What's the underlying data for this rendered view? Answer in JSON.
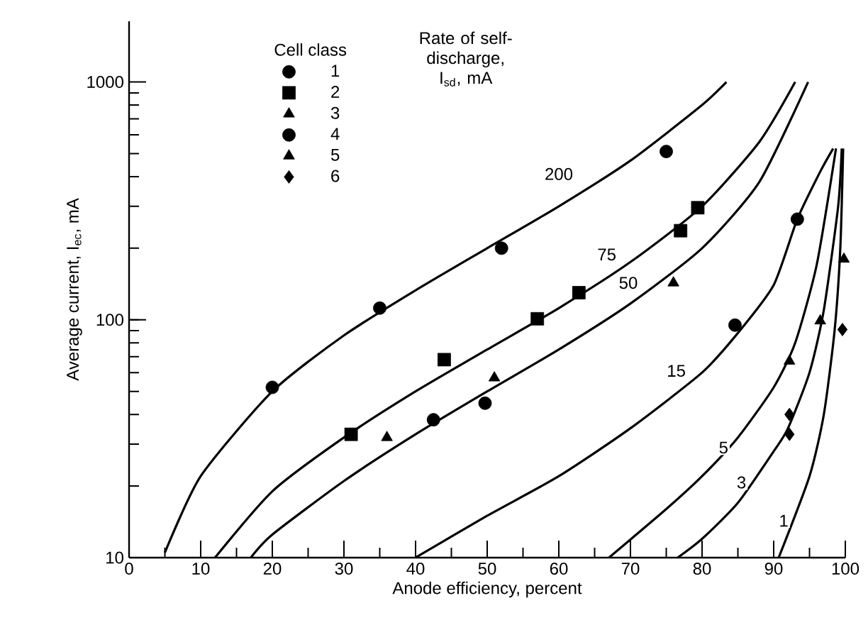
{
  "chart_data": {
    "type": "scatter",
    "xlabel": "Anode efficiency, percent",
    "ylabel": "Average current, I$_{ec}$, mA",
    "log": "y",
    "xlim": [
      0,
      100
    ],
    "ylim": [
      10,
      1800
    ],
    "xticks": [
      0,
      10,
      20,
      30,
      40,
      50,
      60,
      70,
      80,
      90,
      100
    ],
    "yticks": [
      10,
      100,
      1000
    ],
    "legend": "top left",
    "legend_title": "Cell class",
    "series": [
      {
        "name": "1",
        "marker": "circle",
        "color": "#000000",
        "x": [
          20,
          35,
          52,
          75
        ],
        "values": [
          52,
          112,
          200,
          510
        ]
      },
      {
        "name": "2",
        "marker": "square",
        "color": "#000000",
        "x": [
          31,
          44,
          57,
          62.8,
          77,
          79.4
        ],
        "values": [
          33,
          68,
          101,
          130,
          237,
          296
        ]
      },
      {
        "name": "3",
        "marker": "triangle",
        "color": "#000000",
        "x": [
          36,
          51,
          76
        ],
        "values": [
          32,
          57,
          143
        ]
      },
      {
        "name": "4",
        "marker": "circle",
        "color": "#000000",
        "x": [
          42.5,
          49.7,
          84.6,
          93.3
        ],
        "values": [
          38,
          44.6,
          95,
          265
        ]
      },
      {
        "name": "5",
        "marker": "triangle",
        "color": "#000000",
        "x": [
          92.2,
          96.5,
          99.8
        ],
        "values": [
          67,
          99,
          180
        ]
      },
      {
        "name": "6",
        "marker": "diamond",
        "color": "#000000",
        "x": [
          92.2,
          92.2,
          99.6
        ],
        "values": [
          40,
          33,
          91
        ]
      },
      {
        "type": "line",
        "color": "#000000",
        "x": [
          5,
          10,
          20,
          30,
          40,
          50,
          60,
          70,
          80,
          83.4
        ],
        "values": [
          10.5,
          22,
          50,
          86,
          133,
          200,
          300,
          467,
          800,
          1000
        ]
      },
      {
        "type": "line",
        "color": "#000000",
        "x": [
          12,
          20,
          30,
          40,
          50,
          60,
          70,
          80,
          88,
          93
        ],
        "values": [
          10,
          19,
          32,
          50,
          75,
          112,
          175,
          300,
          560,
          1000
        ]
      },
      {
        "type": "line",
        "color": "#000000",
        "x": [
          17,
          20,
          30,
          40,
          50,
          60,
          70,
          80,
          88,
          94.8
        ],
        "values": [
          10,
          12.5,
          21,
          33,
          50,
          75,
          117,
          200,
          380,
          1000
        ]
      },
      {
        "type": "line",
        "color": "#000000",
        "x": [
          40,
          50,
          60,
          70,
          80,
          85,
          90,
          93.3,
          96.5,
          98.3
        ],
        "values": [
          10,
          15,
          22,
          35,
          60,
          88,
          140,
          265,
          420,
          525
        ]
      },
      {
        "type": "line",
        "color": "#000000",
        "x": [
          67,
          75,
          80,
          85,
          90,
          93,
          96,
          98.7
        ],
        "values": [
          10,
          16,
          22,
          32,
          52,
          80,
          170,
          525
        ]
      },
      {
        "type": "line",
        "color": "#000000",
        "x": [
          76.6,
          80,
          85,
          90,
          92,
          95,
          97,
          99,
          99.5
        ],
        "values": [
          10,
          12,
          17,
          28,
          35,
          60,
          110,
          300,
          525
        ]
      },
      {
        "type": "line",
        "color": "#000000",
        "x": [
          90.7,
          95,
          97,
          98.5,
          99.3,
          99.7
        ],
        "values": [
          10,
          22,
          40,
          90,
          200,
          525
        ]
      }
    ],
    "annotations": [
      "Rate of self-discharge, I$_{sd}$, mA",
      {
        "text": "200",
        "x": 60,
        "y": 410
      },
      {
        "text": "75",
        "x": 66.7,
        "y": 188
      },
      {
        "text": "50",
        "x": 69.7,
        "y": 143
      },
      {
        "text": "15",
        "x": 76.4,
        "y": 61
      },
      {
        "text": "5",
        "x": 83,
        "y": 29
      },
      {
        "text": "3",
        "x": 85.5,
        "y": 20.7
      },
      {
        "text": "1",
        "x": 91.4,
        "y": 14.3
      }
    ]
  }
}
